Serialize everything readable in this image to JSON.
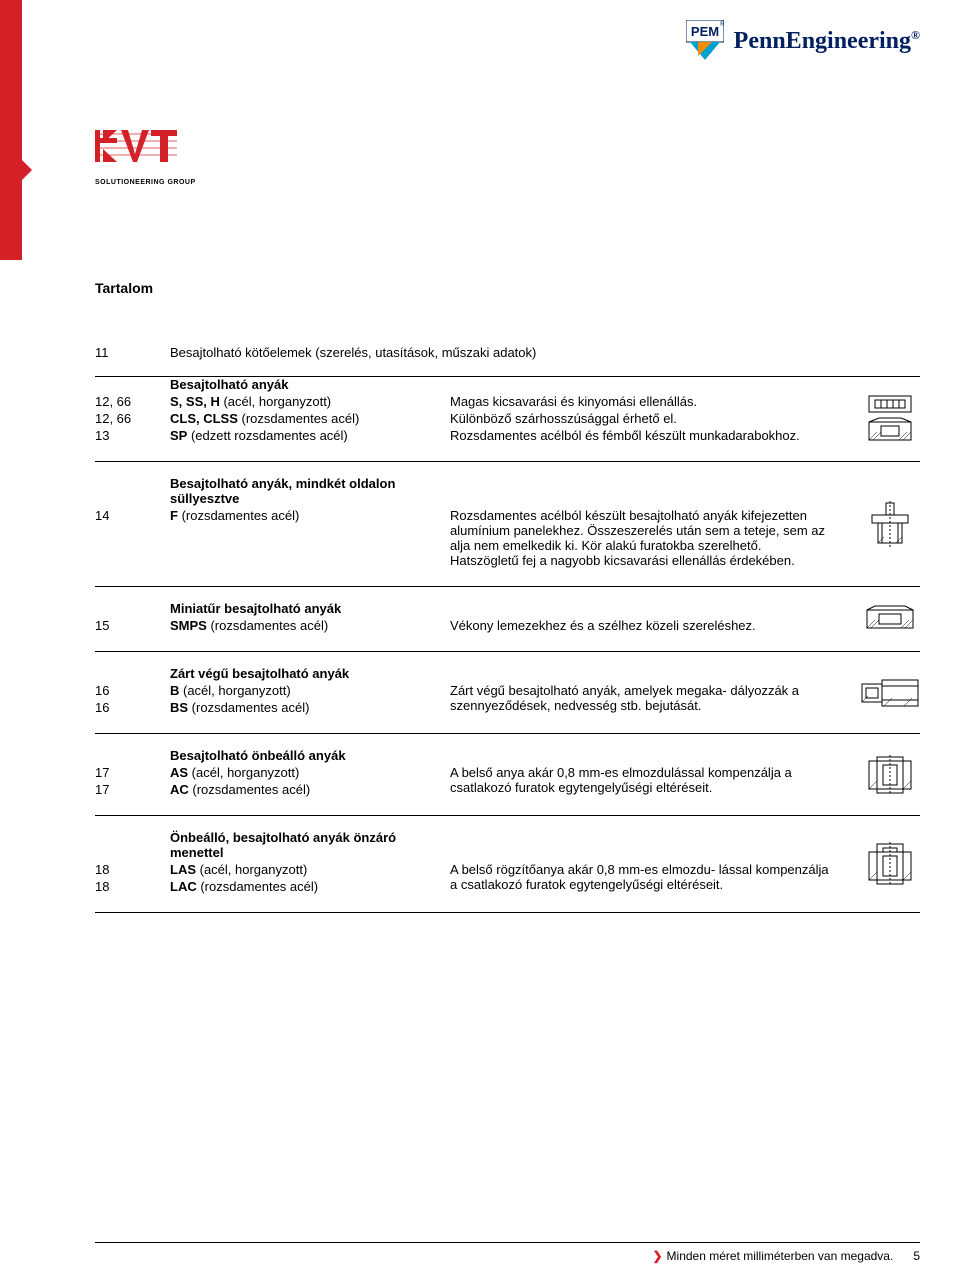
{
  "header": {
    "brand1": "PEM",
    "brand2": "PennEngineering",
    "brand2_r": "®"
  },
  "kvt": {
    "mark": "KVT",
    "sub": "SOLUTIONEERING GROUP"
  },
  "title": "Tartalom",
  "first_row": {
    "page": "11",
    "text": "Besajtolható kötőelemek (szerelés, utasítások, műszaki adatok)"
  },
  "sections": [
    {
      "heading": "Besajtolható anyák",
      "icon": "nut1",
      "rows": [
        {
          "page": "12, 66",
          "code": "S, SS, H",
          "code_extra": " (acél, horganyzott)",
          "desc": "Magas kicsavarási és kinyomási ellenállás."
        },
        {
          "page": "12, 66",
          "code": "CLS, CLSS",
          "code_extra": " (rozsdamentes acél)",
          "desc": "Különböző szárhosszúsággal érhető el."
        },
        {
          "page": "13",
          "code": "SP",
          "code_extra": " (edzett rozsdamentes acél)",
          "desc": "Rozsdamentes acélból és fémből készült munkadarabokhoz."
        }
      ]
    },
    {
      "heading": "Besajtolható anyák, mindkét oldalon süllyesztve",
      "icon": "nut2",
      "rows": [
        {
          "page": "14",
          "code": "F",
          "code_extra": " (rozsdamentes acél)",
          "desc": "Rozsdamentes acélból készült besajtolható anyák kifejezetten alumínium panelekhez. Összeszerelés után sem a teteje, sem az alja nem emelkedik ki. Kör alakú furatokba szerelhető. Hatszögletű fej a nagyobb kicsavarási ellenállás érdekében."
        }
      ]
    },
    {
      "heading": "Miniatűr besajtolható anyák",
      "icon": "nut3",
      "rows": [
        {
          "page": "15",
          "code": "SMPS",
          "code_extra": " (rozsdamentes acél)",
          "desc": "Vékony lemezekhez és a szélhez közeli szereléshez."
        }
      ]
    },
    {
      "heading": "Zárt végű besajtolható anyák",
      "icon": "nut4",
      "rows": [
        {
          "page": "16",
          "code": "B",
          "code_extra": " (acél, horganyzott)",
          "desc": "Zárt végű besajtolható anyák, amelyek megaka-"
        },
        {
          "page": "16",
          "code": "BS",
          "code_extra": " (rozsdamentes acél)",
          "desc": "dályozzák a szennyeződések, nedvesség stb. bejutását."
        }
      ],
      "merged_desc": true
    },
    {
      "heading": "Besajtolható önbeálló anyák",
      "icon": "nut5",
      "rows": [
        {
          "page": "17",
          "code": "AS",
          "code_extra": " (acél, horganyzott)",
          "desc": "A belső anya akár 0,8 mm-es elmozdulással"
        },
        {
          "page": "17",
          "code": "AC",
          "code_extra": " (rozsdamentes acél)",
          "desc": "kompenzálja a csatlakozó furatok egytengelyűségi eltéréseit."
        }
      ],
      "merged_desc": true
    },
    {
      "heading": "Önbeálló, besajtolható anyák önzáró menettel",
      "icon": "nut6",
      "rows": [
        {
          "page": "18",
          "code": "LAS",
          "code_extra": " (acél, horganyzott)",
          "desc": "A belső rögzítőanya akár 0,8 mm-es elmozdu-"
        },
        {
          "page": "18",
          "code": "LAC",
          "code_extra": " (rozsdamentes acél)",
          "desc": "lással kompenzálja a csatlakozó furatok egytengelyűségi eltéréseit."
        }
      ],
      "merged_desc": true
    }
  ],
  "footer": {
    "marker": "❯",
    "text": "Minden méret milliméterben van megadva.",
    "page": "5"
  }
}
